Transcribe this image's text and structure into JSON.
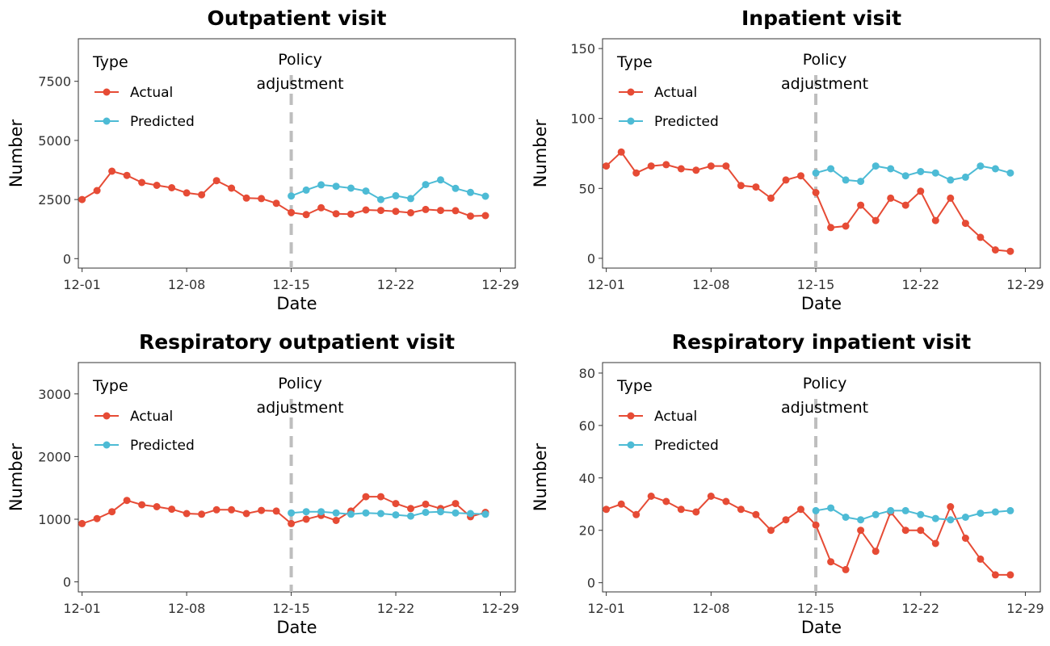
{
  "colors": {
    "actual": "#E64B35",
    "predicted": "#4DBBD5",
    "vline": "#BEBEBE"
  },
  "chart_data": [
    {
      "type": "line",
      "title": "Outpatient visit",
      "xlabel": "Date",
      "ylabel": "Number",
      "x_tick_labels": [
        "12-01",
        "12-08",
        "12-15",
        "12-22",
        "12-29"
      ],
      "x_tick_days": [
        1,
        8,
        15,
        22,
        29
      ],
      "y_ticks": [
        0,
        2500,
        5000,
        7500
      ],
      "xlim": [
        0.75,
        30.0
      ],
      "ylim": [
        -400,
        9300
      ],
      "legend": {
        "title": "Type",
        "position": "top-left"
      },
      "annotation": {
        "lines": [
          "Policy",
          "adjustment"
        ],
        "x": 15
      },
      "grid": false,
      "series": [
        {
          "name": "Actual",
          "x": [
            1,
            2,
            3,
            4,
            5,
            6,
            7,
            8,
            9,
            10,
            11,
            12,
            13,
            14,
            15,
            16,
            17,
            18,
            19,
            20,
            21,
            22,
            23,
            24,
            25,
            26,
            27,
            28
          ],
          "values": [
            2500,
            2880,
            3700,
            3520,
            3220,
            3100,
            3000,
            2780,
            2700,
            3300,
            2980,
            2560,
            2540,
            2340,
            1950,
            1860,
            2150,
            1900,
            1880,
            2060,
            2040,
            2000,
            1940,
            2080,
            2040,
            2030,
            1800,
            1820
          ]
        },
        {
          "name": "Predicted",
          "x": [
            15,
            16,
            17,
            18,
            19,
            20,
            21,
            22,
            23,
            24,
            25,
            26,
            27,
            28
          ],
          "values": [
            2650,
            2900,
            3120,
            3060,
            2980,
            2860,
            2500,
            2660,
            2540,
            3130,
            3330,
            2970,
            2800,
            2640
          ]
        }
      ]
    },
    {
      "type": "line",
      "title": "Inpatient visit",
      "xlabel": "Date",
      "ylabel": "Number",
      "x_tick_labels": [
        "12-01",
        "12-08",
        "12-15",
        "12-22",
        "12-29"
      ],
      "x_tick_days": [
        1,
        8,
        15,
        22,
        29
      ],
      "y_ticks": [
        0,
        50,
        100,
        150
      ],
      "xlim": [
        0.75,
        30.0
      ],
      "ylim": [
        -7,
        157
      ],
      "legend": {
        "title": "Type",
        "position": "top-left"
      },
      "annotation": {
        "lines": [
          "Policy",
          "adjustment"
        ],
        "x": 15
      },
      "grid": false,
      "series": [
        {
          "name": "Actual",
          "x": [
            1,
            2,
            3,
            4,
            5,
            6,
            7,
            8,
            9,
            10,
            11,
            12,
            13,
            14,
            15,
            16,
            17,
            18,
            19,
            20,
            21,
            22,
            23,
            24,
            25,
            26,
            27,
            28
          ],
          "values": [
            66,
            76,
            61,
            66,
            67,
            64,
            63,
            66,
            66,
            52,
            51,
            43,
            56,
            59,
            47,
            22,
            23,
            38,
            27,
            43,
            38,
            48,
            27,
            43,
            25,
            15,
            6,
            5
          ]
        },
        {
          "name": "Predicted",
          "x": [
            15,
            16,
            17,
            18,
            19,
            20,
            21,
            22,
            23,
            24,
            25,
            26,
            27,
            28
          ],
          "values": [
            61,
            64,
            56,
            55,
            66,
            64,
            59,
            62,
            61,
            56,
            58,
            66,
            64,
            61
          ]
        }
      ]
    },
    {
      "type": "line",
      "title": "Respiratory outpatient visit",
      "xlabel": "Date",
      "ylabel": "Number",
      "x_tick_labels": [
        "12-01",
        "12-08",
        "12-15",
        "12-22",
        "12-29"
      ],
      "x_tick_days": [
        1,
        8,
        15,
        22,
        29
      ],
      "y_ticks": [
        0,
        1000,
        2000,
        3000
      ],
      "xlim": [
        0.75,
        30.0
      ],
      "ylim": [
        -160,
        3500
      ],
      "legend": {
        "title": "Type",
        "position": "top-left"
      },
      "annotation": {
        "lines": [
          "Policy",
          "adjustment"
        ],
        "x": 15
      },
      "grid": false,
      "series": [
        {
          "name": "Actual",
          "x": [
            1,
            2,
            3,
            4,
            5,
            6,
            7,
            8,
            9,
            10,
            11,
            12,
            13,
            14,
            15,
            16,
            17,
            18,
            19,
            20,
            21,
            22,
            23,
            24,
            25,
            26,
            27,
            28
          ],
          "values": [
            930,
            1010,
            1120,
            1300,
            1230,
            1200,
            1160,
            1090,
            1080,
            1150,
            1150,
            1090,
            1140,
            1130,
            930,
            1000,
            1060,
            980,
            1130,
            1360,
            1360,
            1250,
            1170,
            1240,
            1170,
            1250,
            1040,
            1110
          ]
        },
        {
          "name": "Predicted",
          "x": [
            15,
            16,
            17,
            18,
            19,
            20,
            21,
            22,
            23,
            24,
            25,
            26,
            27,
            28
          ],
          "values": [
            1100,
            1120,
            1120,
            1100,
            1080,
            1100,
            1090,
            1070,
            1050,
            1110,
            1120,
            1100,
            1090,
            1080
          ]
        }
      ]
    },
    {
      "type": "line",
      "title": "Respiratory inpatient visit",
      "xlabel": "Date",
      "ylabel": "Number",
      "x_tick_labels": [
        "12-01",
        "12-08",
        "12-15",
        "12-22",
        "12-29"
      ],
      "x_tick_days": [
        1,
        8,
        15,
        22,
        29
      ],
      "y_ticks": [
        0,
        20,
        40,
        60,
        80
      ],
      "xlim": [
        0.75,
        30.0
      ],
      "ylim": [
        -3.5,
        84
      ],
      "legend": {
        "title": "Type",
        "position": "top-left"
      },
      "annotation": {
        "lines": [
          "Policy",
          "adjustment"
        ],
        "x": 15
      },
      "grid": false,
      "series": [
        {
          "name": "Actual",
          "x": [
            1,
            2,
            3,
            4,
            5,
            6,
            7,
            8,
            9,
            10,
            11,
            12,
            13,
            14,
            15,
            16,
            17,
            18,
            19,
            20,
            21,
            22,
            23,
            24,
            25,
            26,
            27,
            28
          ],
          "values": [
            28,
            30,
            26,
            33,
            31,
            28,
            27,
            33,
            31,
            28,
            26,
            20,
            24,
            28,
            22,
            8,
            5,
            20,
            12,
            27,
            20,
            20,
            15,
            29,
            17,
            9,
            3,
            3
          ]
        },
        {
          "name": "Predicted",
          "x": [
            15,
            16,
            17,
            18,
            19,
            20,
            21,
            22,
            23,
            24,
            25,
            26,
            27,
            28
          ],
          "values": [
            27.5,
            28.5,
            25,
            24,
            26,
            27.5,
            27.5,
            26,
            24.5,
            24,
            25,
            26.5,
            27,
            27.5
          ]
        }
      ]
    }
  ]
}
